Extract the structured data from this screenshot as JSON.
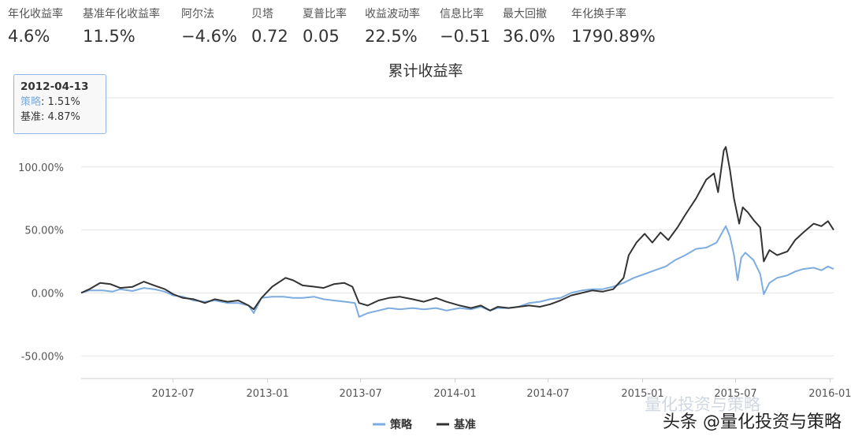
{
  "metrics": [
    {
      "label": "年化收益率",
      "value": "4.6%"
    },
    {
      "label": "基准年化收益率",
      "value": "11.5%"
    },
    {
      "label": "阿尔法",
      "value": "−4.6%"
    },
    {
      "label": "贝塔",
      "value": "0.72"
    },
    {
      "label": "夏普比率",
      "value": "0.05"
    },
    {
      "label": "收益波动率",
      "value": "22.5%"
    },
    {
      "label": "信息比率",
      "value": "−0.51"
    },
    {
      "label": "最大回撤",
      "value": "36.0%"
    },
    {
      "label": "年化换手率",
      "value": "1790.89%"
    }
  ],
  "tooltip": {
    "date": "2012-04-13",
    "strategy_label": "策略",
    "strategy_value": ": 1.51%",
    "benchmark_label": "基准",
    "benchmark_value": ": 4.87%"
  },
  "watermark": "头条 @量化投资与策略",
  "watermark_faint": "量化投资与策略",
  "colors": {
    "strategy": "#7cace0",
    "benchmark": "#333333",
    "grid": "#e6e6e6"
  },
  "chart_data": {
    "type": "line",
    "title": "累计收益率",
    "x_ticks": [
      "2012-07",
      "2013-01",
      "2013-07",
      "2014-01",
      "2014-07",
      "2015-01",
      "2015-07",
      "2016-01"
    ],
    "y_ticks": [
      "100.00%",
      "50.00%",
      "0.00%",
      "-50.00%"
    ],
    "y_tick_values": [
      100,
      50,
      0,
      -50
    ],
    "ylim": [
      -68,
      155
    ],
    "xlim": [
      "2012-01-04",
      "2016-01-08"
    ],
    "legend_position": "bottom-center",
    "grid": true,
    "series": [
      {
        "name": "策略",
        "color": "#7cace0",
        "points": [
          [
            "2012-01-04",
            0
          ],
          [
            "2012-01-20",
            2
          ],
          [
            "2012-02-15",
            2
          ],
          [
            "2012-03-05",
            1
          ],
          [
            "2012-03-20",
            3
          ],
          [
            "2012-04-13",
            1.5
          ],
          [
            "2012-05-05",
            4
          ],
          [
            "2012-05-25",
            3
          ],
          [
            "2012-06-15",
            1
          ],
          [
            "2012-07-01",
            -2
          ],
          [
            "2012-07-20",
            -3
          ],
          [
            "2012-08-10",
            -6
          ],
          [
            "2012-09-01",
            -7
          ],
          [
            "2012-09-20",
            -6
          ],
          [
            "2012-10-15",
            -8
          ],
          [
            "2012-11-05",
            -8
          ],
          [
            "2012-11-25",
            -10
          ],
          [
            "2012-12-05",
            -16
          ],
          [
            "2012-12-20",
            -4
          ],
          [
            "2013-01-10",
            -3
          ],
          [
            "2013-02-01",
            -3
          ],
          [
            "2013-02-20",
            -4
          ],
          [
            "2013-03-10",
            -4
          ],
          [
            "2013-04-01",
            -3
          ],
          [
            "2013-04-20",
            -5
          ],
          [
            "2013-05-10",
            -6
          ],
          [
            "2013-06-01",
            -7
          ],
          [
            "2013-06-20",
            -8
          ],
          [
            "2013-06-28",
            -19
          ],
          [
            "2013-07-15",
            -16
          ],
          [
            "2013-08-05",
            -14
          ],
          [
            "2013-08-25",
            -12
          ],
          [
            "2013-09-15",
            -13
          ],
          [
            "2013-10-10",
            -12
          ],
          [
            "2013-11-01",
            -13
          ],
          [
            "2013-11-25",
            -12
          ],
          [
            "2013-12-15",
            -14
          ],
          [
            "2014-01-10",
            -12
          ],
          [
            "2014-02-01",
            -13
          ],
          [
            "2014-02-20",
            -11
          ],
          [
            "2014-03-10",
            -14
          ],
          [
            "2014-03-25",
            -12
          ],
          [
            "2014-04-15",
            -12
          ],
          [
            "2014-05-05",
            -11
          ],
          [
            "2014-05-25",
            -8
          ],
          [
            "2014-06-15",
            -7
          ],
          [
            "2014-07-05",
            -5
          ],
          [
            "2014-07-25",
            -4
          ],
          [
            "2014-08-15",
            0
          ],
          [
            "2014-09-05",
            2
          ],
          [
            "2014-09-25",
            3
          ],
          [
            "2014-10-15",
            3
          ],
          [
            "2014-11-05",
            5
          ],
          [
            "2014-11-25",
            8
          ],
          [
            "2014-12-15",
            12
          ],
          [
            "2015-01-05",
            15
          ],
          [
            "2015-01-25",
            18
          ],
          [
            "2015-02-15",
            21
          ],
          [
            "2015-03-05",
            26
          ],
          [
            "2015-03-25",
            30
          ],
          [
            "2015-04-15",
            35
          ],
          [
            "2015-05-05",
            36
          ],
          [
            "2015-05-25",
            40
          ],
          [
            "2015-06-05",
            48
          ],
          [
            "2015-06-12",
            53
          ],
          [
            "2015-06-20",
            45
          ],
          [
            "2015-06-28",
            30
          ],
          [
            "2015-07-05",
            10
          ],
          [
            "2015-07-12",
            28
          ],
          [
            "2015-07-20",
            32
          ],
          [
            "2015-08-05",
            26
          ],
          [
            "2015-08-18",
            15
          ],
          [
            "2015-08-25",
            -1
          ],
          [
            "2015-09-05",
            8
          ],
          [
            "2015-09-20",
            12
          ],
          [
            "2015-10-10",
            14
          ],
          [
            "2015-10-25",
            17
          ],
          [
            "2015-11-10",
            19
          ],
          [
            "2015-11-30",
            20
          ],
          [
            "2015-12-15",
            18
          ],
          [
            "2015-12-28",
            21
          ],
          [
            "2016-01-08",
            19
          ]
        ]
      },
      {
        "name": "基准",
        "color": "#333333",
        "points": [
          [
            "2012-01-04",
            0
          ],
          [
            "2012-01-20",
            3
          ],
          [
            "2012-02-10",
            8
          ],
          [
            "2012-03-01",
            7
          ],
          [
            "2012-03-20",
            4
          ],
          [
            "2012-04-13",
            4.87
          ],
          [
            "2012-05-05",
            9
          ],
          [
            "2012-05-25",
            6
          ],
          [
            "2012-06-15",
            3
          ],
          [
            "2012-07-01",
            -1
          ],
          [
            "2012-07-20",
            -4
          ],
          [
            "2012-08-10",
            -5
          ],
          [
            "2012-09-01",
            -8
          ],
          [
            "2012-09-20",
            -5
          ],
          [
            "2012-10-15",
            -7
          ],
          [
            "2012-11-05",
            -6
          ],
          [
            "2012-11-25",
            -10
          ],
          [
            "2012-12-05",
            -13
          ],
          [
            "2012-12-20",
            -4
          ],
          [
            "2013-01-10",
            5
          ],
          [
            "2013-02-05",
            12
          ],
          [
            "2013-02-20",
            10
          ],
          [
            "2013-03-10",
            6
          ],
          [
            "2013-04-01",
            5
          ],
          [
            "2013-04-20",
            4
          ],
          [
            "2013-05-10",
            7
          ],
          [
            "2013-05-30",
            8
          ],
          [
            "2013-06-15",
            5
          ],
          [
            "2013-06-28",
            -8
          ],
          [
            "2013-07-15",
            -10
          ],
          [
            "2013-08-05",
            -6
          ],
          [
            "2013-08-25",
            -4
          ],
          [
            "2013-09-15",
            -3
          ],
          [
            "2013-10-10",
            -5
          ],
          [
            "2013-11-01",
            -7
          ],
          [
            "2013-11-25",
            -4
          ],
          [
            "2013-12-15",
            -7
          ],
          [
            "2014-01-10",
            -10
          ],
          [
            "2014-02-01",
            -12
          ],
          [
            "2014-02-20",
            -10
          ],
          [
            "2014-03-10",
            -14
          ],
          [
            "2014-03-25",
            -11
          ],
          [
            "2014-04-15",
            -12
          ],
          [
            "2014-05-05",
            -11
          ],
          [
            "2014-05-25",
            -10
          ],
          [
            "2014-06-15",
            -11
          ],
          [
            "2014-07-05",
            -9
          ],
          [
            "2014-07-25",
            -6
          ],
          [
            "2014-08-15",
            -2
          ],
          [
            "2014-09-05",
            0
          ],
          [
            "2014-09-25",
            2
          ],
          [
            "2014-10-15",
            1
          ],
          [
            "2014-11-05",
            3
          ],
          [
            "2014-11-25",
            12
          ],
          [
            "2014-12-05",
            30
          ],
          [
            "2014-12-20",
            40
          ],
          [
            "2015-01-05",
            47
          ],
          [
            "2015-01-20",
            40
          ],
          [
            "2015-02-05",
            48
          ],
          [
            "2015-02-20",
            42
          ],
          [
            "2015-03-10",
            52
          ],
          [
            "2015-03-25",
            62
          ],
          [
            "2015-04-15",
            75
          ],
          [
            "2015-05-05",
            90
          ],
          [
            "2015-05-20",
            95
          ],
          [
            "2015-05-28",
            80
          ],
          [
            "2015-06-08",
            113
          ],
          [
            "2015-06-12",
            116
          ],
          [
            "2015-06-20",
            98
          ],
          [
            "2015-06-28",
            75
          ],
          [
            "2015-07-08",
            55
          ],
          [
            "2015-07-15",
            68
          ],
          [
            "2015-07-25",
            64
          ],
          [
            "2015-08-05",
            58
          ],
          [
            "2015-08-18",
            52
          ],
          [
            "2015-08-25",
            25
          ],
          [
            "2015-09-05",
            34
          ],
          [
            "2015-09-20",
            30
          ],
          [
            "2015-10-10",
            33
          ],
          [
            "2015-10-25",
            42
          ],
          [
            "2015-11-10",
            48
          ],
          [
            "2015-11-30",
            55
          ],
          [
            "2015-12-15",
            53
          ],
          [
            "2015-12-28",
            57
          ],
          [
            "2016-01-08",
            50
          ]
        ]
      }
    ]
  }
}
